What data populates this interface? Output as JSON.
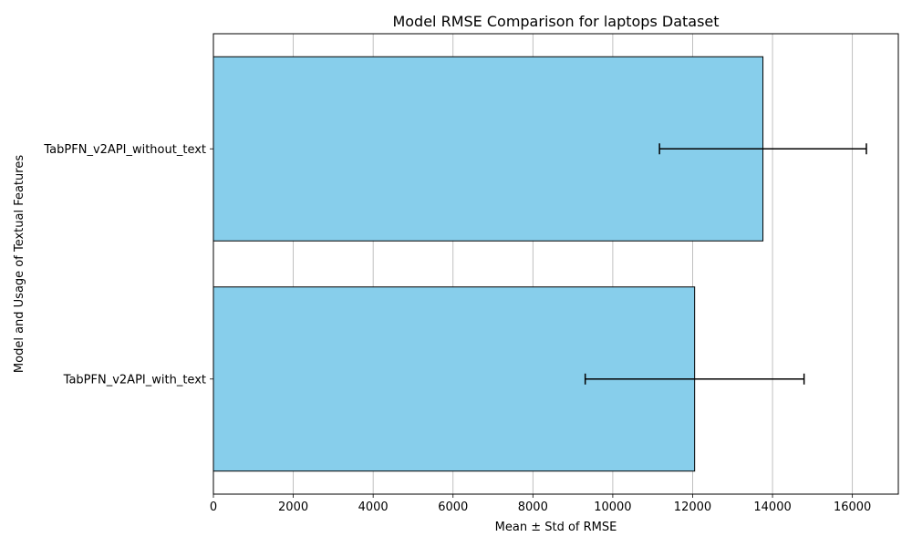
{
  "chart_data": {
    "type": "bar",
    "orientation": "horizontal",
    "title": "Model RMSE Comparison for laptops Dataset",
    "xlabel": "Mean ± Std of RMSE",
    "ylabel": "Model and Usage of Textual Features",
    "categories": [
      "TabPFN_v2API_with_text",
      "TabPFN_v2API_without_text"
    ],
    "values": [
      12050,
      13760
    ],
    "errors": [
      2740,
      2590
    ],
    "xlim": [
      0,
      17150
    ],
    "xticks": [
      0,
      2000,
      4000,
      6000,
      8000,
      10000,
      12000,
      14000,
      16000
    ],
    "grid": "x",
    "bar_color": "#87ceeb",
    "edge_color": "#000000",
    "errorbar_color": "#000000"
  }
}
